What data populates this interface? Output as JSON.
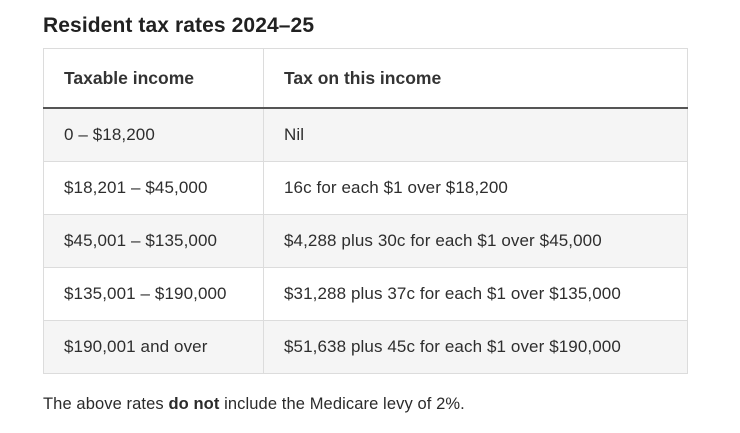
{
  "page": {
    "title": "Resident tax rates 2024–25"
  },
  "table": {
    "columns": [
      "Taxable income",
      "Tax on this income"
    ],
    "rows": [
      {
        "income": "0 – $18,200",
        "tax": "Nil"
      },
      {
        "income": "$18,201 – $45,000",
        "tax": "16c for each $1 over $18,200"
      },
      {
        "income": "$45,001 – $135,000",
        "tax": "$4,288 plus 30c for each $1 over $45,000"
      },
      {
        "income": "$135,001 – $190,000",
        "tax": "$31,288 plus 37c for each $1 over $135,000"
      },
      {
        "income": "$190,001 and over",
        "tax": "$51,638 plus 45c for each $1 over $190,000"
      }
    ],
    "colors": {
      "row_alt_bg": "#f5f5f5",
      "border_light": "#dcdcdc",
      "border_dark": "#555555",
      "text": "#2b2b2b"
    }
  },
  "footer": {
    "prefix": "The above rates ",
    "bold": "do not",
    "suffix": " include the Medicare levy of 2%."
  }
}
